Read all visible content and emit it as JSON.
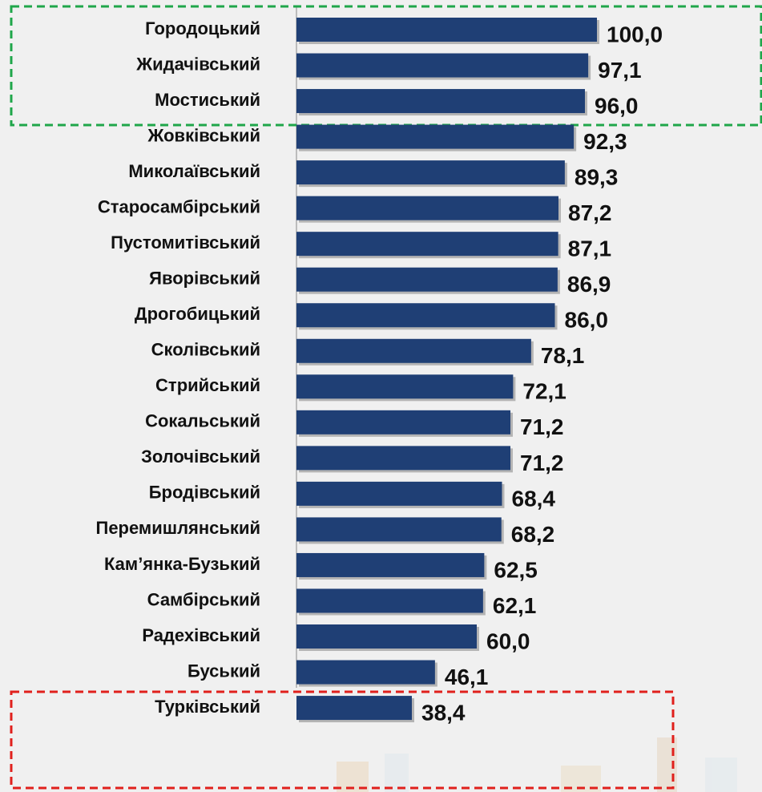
{
  "chart_data": {
    "type": "bar",
    "orientation": "horizontal",
    "color": "#1f3f75",
    "xlim": [
      0,
      100
    ],
    "categories": [
      "Городоцький",
      "Жидачівський",
      "Мостиський",
      "Жовківський",
      "Миколаївський",
      "Старосамбірський",
      "Пустомитівський",
      "Яворівський",
      "Дрогобицький",
      "Сколівський",
      "Стрийський",
      "Сокальський",
      "Золочівський",
      "Бродівський",
      "Перемишлянський",
      "Кам’янка-Бузький",
      "Самбірський",
      "Радехівський",
      "Буський",
      "Турківський"
    ],
    "values": [
      100.0,
      97.1,
      96.0,
      92.3,
      89.3,
      87.2,
      87.1,
      86.9,
      86.0,
      78.1,
      72.1,
      71.2,
      71.2,
      68.4,
      68.2,
      62.5,
      62.1,
      60.0,
      46.1,
      38.4
    ],
    "value_labels": [
      "100,0",
      "97,1",
      "96,0",
      "92,3",
      "89,3",
      "87,2",
      "87,1",
      "86,9",
      "86,0",
      "78,1",
      "72,1",
      "71,2",
      "71,2",
      "68,4",
      "68,2",
      "62,5",
      "62,1",
      "60,0",
      "46,1",
      "38,4"
    ]
  }
}
